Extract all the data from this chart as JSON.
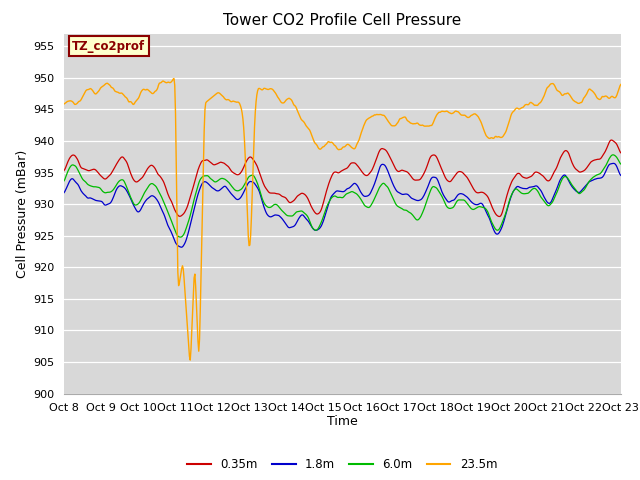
{
  "title": "Tower CO2 Profile Cell Pressure",
  "xlabel": "Time",
  "ylabel": "Cell Pressure (mBar)",
  "ylim": [
    900,
    957
  ],
  "yticks": [
    900,
    905,
    910,
    915,
    920,
    925,
    930,
    935,
    940,
    945,
    950,
    955
  ],
  "xtick_labels": [
    "Oct 8",
    "Oct 9",
    "Oct 10",
    "Oct 11",
    "Oct 12",
    "Oct 13",
    "Oct 14",
    "Oct 15",
    "Oct 16",
    "Oct 17",
    "Oct 18",
    "Oct 19",
    "Oct 20",
    "Oct 21",
    "Oct 22",
    "Oct 23"
  ],
  "colors": {
    "red": "#cc0000",
    "blue": "#0000cc",
    "green": "#00bb00",
    "orange": "#ffa500"
  },
  "legend_labels": [
    "0.35m",
    "1.8m",
    "6.0m",
    "23.5m"
  ],
  "annotation_text": "TZ_co2prof",
  "annotation_color": "#8B0000",
  "annotation_bg": "#ffffcc",
  "plot_bg": "#d8d8d8",
  "n_points": 720,
  "title_fontsize": 11,
  "axis_fontsize": 9,
  "tick_fontsize": 8
}
